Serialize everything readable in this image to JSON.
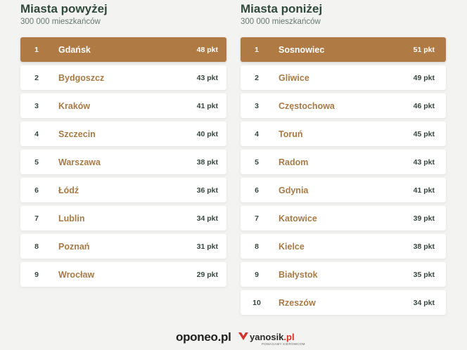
{
  "left": {
    "title": "Miasta powyżej",
    "subtitle": "300 000 mieszkańców",
    "rows": [
      {
        "rank": "1",
        "city": "Gdańsk",
        "score": "48 pkt"
      },
      {
        "rank": "2",
        "city": "Bydgoszcz",
        "score": "43 pkt"
      },
      {
        "rank": "3",
        "city": "Kraków",
        "score": "41 pkt"
      },
      {
        "rank": "4",
        "city": "Szczecin",
        "score": "40 pkt"
      },
      {
        "rank": "5",
        "city": "Warszawa",
        "score": "38 pkt"
      },
      {
        "rank": "6",
        "city": "Łódź",
        "score": "36 pkt"
      },
      {
        "rank": "7",
        "city": "Lublin",
        "score": "34 pkt"
      },
      {
        "rank": "8",
        "city": "Poznań",
        "score": "31 pkt"
      },
      {
        "rank": "9",
        "city": "Wrocław",
        "score": "29 pkt"
      }
    ]
  },
  "right": {
    "title": "Miasta poniżej",
    "subtitle": "300 000 mieszkańców",
    "rows": [
      {
        "rank": "1",
        "city": "Sosnowiec",
        "score": "51 pkt"
      },
      {
        "rank": "2",
        "city": "Gliwice",
        "score": "49 pkt"
      },
      {
        "rank": "3",
        "city": "Częstochowa",
        "score": "46 pkt"
      },
      {
        "rank": "4",
        "city": "Toruń",
        "score": "45 pkt"
      },
      {
        "rank": "5",
        "city": "Radom",
        "score": "43 pkt"
      },
      {
        "rank": "6",
        "city": "Gdynia",
        "score": "41 pkt"
      },
      {
        "rank": "7",
        "city": "Katowice",
        "score": "39 pkt"
      },
      {
        "rank": "8",
        "city": "Kielce",
        "score": "38 pkt"
      },
      {
        "rank": "9",
        "city": "Białystok",
        "score": "35 pkt"
      },
      {
        "rank": "10",
        "city": "Rzeszów",
        "score": "34 pkt"
      }
    ]
  },
  "footer": {
    "logo_oponeo": "oponeo.pl",
    "logo_yanosik_main": "yanosik",
    "logo_yanosik_suffix": ".pl",
    "logo_yanosik_tagline": "POMAGAMY KIEROWCOM"
  },
  "colors": {
    "background": "#f3f3f1",
    "highlight_row": "#b07a44",
    "city_text": "#a87a46",
    "title_text": "#2f4a3c"
  }
}
